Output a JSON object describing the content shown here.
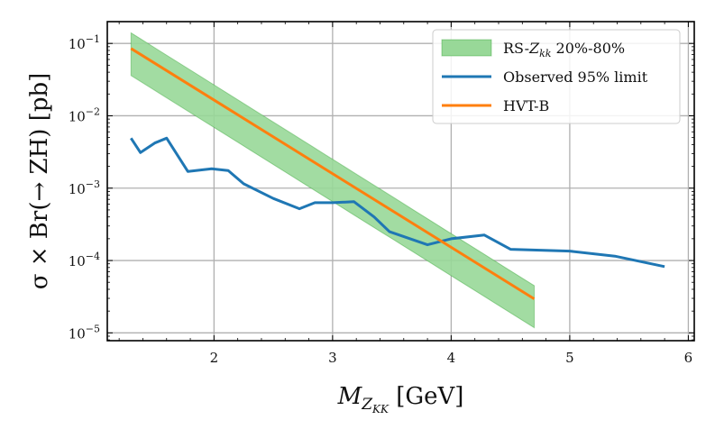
{
  "chart_data": {
    "type": "line",
    "xlabel": "M_{Z_{KK}} [GeV]",
    "ylabel": "σ × Br(→ ZH) [pb]",
    "xlim": [
      1.1,
      6.05
    ],
    "ylim": [
      7.8e-06,
      0.2
    ],
    "yscale": "log",
    "grid": true,
    "legend_position": "top-right",
    "x_ticks": [
      {
        "value": 2,
        "label": "2"
      },
      {
        "value": 3,
        "label": "3"
      },
      {
        "value": 4,
        "label": "4"
      },
      {
        "value": 5,
        "label": "5"
      },
      {
        "value": 6,
        "label": "6"
      }
    ],
    "y_ticks": [
      {
        "value": 1e-05,
        "base": "10",
        "exp": "−5"
      },
      {
        "value": 0.0001,
        "base": "10",
        "exp": "−4"
      },
      {
        "value": 0.001,
        "base": "10",
        "exp": "−3"
      },
      {
        "value": 0.01,
        "base": "10",
        "exp": "−2"
      },
      {
        "value": 0.1,
        "base": "10",
        "exp": "−1"
      }
    ],
    "band": {
      "name": "RS-Z_kk 20%-80%",
      "color": "#98d898",
      "edge_color": "#2ca02c",
      "x": [
        1.3,
        4.7
      ],
      "upper": [
        0.14,
        4.5e-05
      ],
      "lower": [
        0.036,
        1.18e-05
      ]
    },
    "series": [
      {
        "name": "Observed 95% limit",
        "color": "#1f77b4",
        "x": [
          1.3,
          1.38,
          1.5,
          1.6,
          1.78,
          1.98,
          2.12,
          2.25,
          2.5,
          2.72,
          2.85,
          3.0,
          3.18,
          3.35,
          3.48,
          3.8,
          4.0,
          4.28,
          4.5,
          5.0,
          5.38,
          5.8
        ],
        "values": [
          0.0049,
          0.0031,
          0.0042,
          0.0049,
          0.0017,
          0.00185,
          0.00175,
          0.00115,
          0.00072,
          0.00052,
          0.00063,
          0.00063,
          0.00065,
          0.0004,
          0.00025,
          0.000165,
          0.0002,
          0.000225,
          0.000143,
          0.000135,
          0.000115,
          8.25e-05
        ]
      },
      {
        "name": "HVT-B",
        "color": "#ff7f0e",
        "x": [
          1.3,
          4.7
        ],
        "values": [
          0.085,
          2.95e-05
        ]
      }
    ]
  }
}
